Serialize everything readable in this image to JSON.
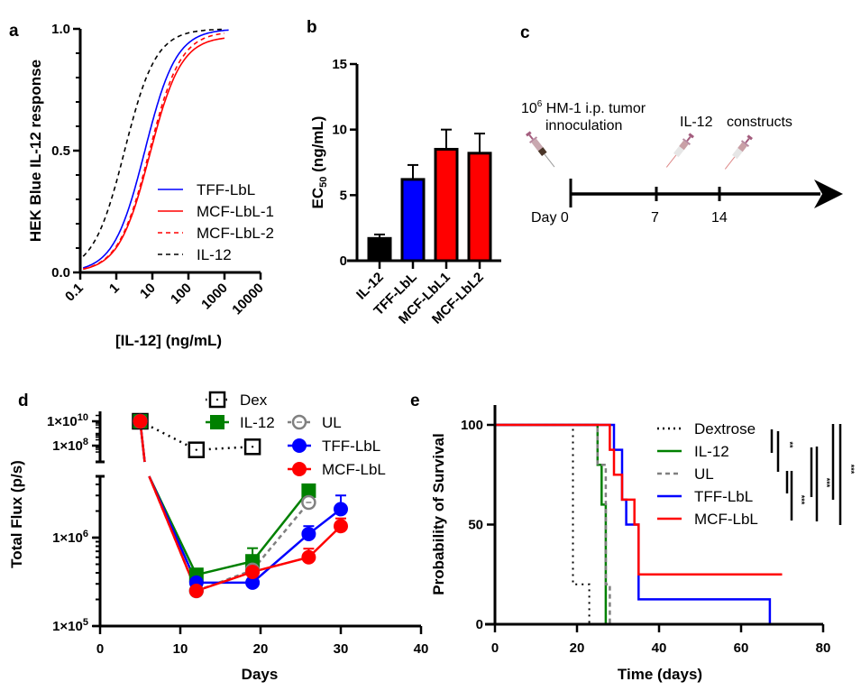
{
  "chart_data": [
    {
      "panel": "a",
      "type": "line",
      "ylabel": "HEK Blue IL-12 response",
      "xlabel": "[IL-12] (ng/mL)",
      "xscale": "log",
      "xlim": [
        0.1,
        10000
      ],
      "ylim": [
        0.0,
        1.0
      ],
      "xticks": [
        "0.1",
        "1",
        "10",
        "100",
        "1000",
        "10000"
      ],
      "yticks": [
        "0.0",
        "0.5",
        "1.0"
      ],
      "legend_position": "lower-right",
      "series": [
        {
          "name": "TFF-LbL",
          "color": "#0000ff",
          "dash": "solid",
          "ec50": 6.2,
          "top": 1.0,
          "bottom": 0.0,
          "hill": 1.0,
          "xmax": 1300
        },
        {
          "name": "MCF-LbL-1",
          "color": "#ff0000",
          "dash": "solid",
          "ec50": 8.5,
          "top": 0.97,
          "bottom": 0.0,
          "hill": 1.0,
          "xmax": 1000
        },
        {
          "name": "MCF-LbL-2",
          "color": "#ff0000",
          "dash": "dashed",
          "ec50": 8.2,
          "top": 0.99,
          "bottom": 0.0,
          "hill": 1.0,
          "xmax": 1000
        },
        {
          "name": "IL-12",
          "color": "#000000",
          "dash": "dashed",
          "ec50": 1.7,
          "top": 1.0,
          "bottom": 0.0,
          "hill": 1.0,
          "xmax": 1000
        }
      ]
    },
    {
      "panel": "b",
      "type": "bar",
      "ylabel_main": "EC",
      "ylabel_sub": "50",
      "ylabel_unit": " (ng/mL)",
      "ylim": [
        0,
        15
      ],
      "yticks": [
        "0",
        "5",
        "10",
        "15"
      ],
      "categories": [
        "IL-12",
        "TFF-LbL",
        "MCF-LbL1",
        "MCF-LbL2"
      ],
      "values": [
        1.7,
        6.2,
        8.5,
        8.2
      ],
      "errors": [
        0.3,
        1.1,
        1.5,
        1.5
      ],
      "colors": [
        "#000000",
        "#0000ff",
        "#ff0000",
        "#ff0000"
      ]
    },
    {
      "panel": "d",
      "type": "line",
      "ylabel": "Total Flux (p/s)",
      "xlabel": "Days",
      "yscale": "log",
      "xlim": [
        0,
        40
      ],
      "ylim_lower": [
        100000,
        5000000
      ],
      "ylim_upper": [
        20000000,
        30000000000
      ],
      "xticks": [
        "0",
        "10",
        "20",
        "30",
        "40"
      ],
      "yticks": [
        {
          "value": 100000,
          "base": "1×10",
          "exp": "5"
        },
        {
          "value": 1000000,
          "base": "1×10",
          "exp": "6"
        },
        {
          "value": 100000000,
          "base": "1×10",
          "exp": "8"
        },
        {
          "value": 10000000000,
          "base": "1×10",
          "exp": "10"
        }
      ],
      "legend_position": "top",
      "series": [
        {
          "name": "Dex",
          "color": "#000000",
          "marker": "open-square",
          "line": "dotted",
          "x": [
            5,
            12,
            19
          ],
          "y": [
            10000000000,
            45000000,
            80000000
          ],
          "err": [
            0,
            0,
            0
          ]
        },
        {
          "name": "IL-12",
          "color": "#008000",
          "marker": "filled-square",
          "line": "solid",
          "x": [
            5,
            12,
            19,
            26
          ],
          "y": [
            10000000000,
            380000,
            540000,
            3400000
          ],
          "err": [
            0,
            0,
            220000,
            0
          ]
        },
        {
          "name": "UL",
          "color": "#808080",
          "marker": "open-circle",
          "line": "dashed",
          "x": [
            5,
            12,
            19,
            26
          ],
          "y": [
            10000000000,
            250000,
            430000,
            2500000
          ],
          "err": [
            0,
            0,
            0,
            0
          ]
        },
        {
          "name": "TFF-LbL",
          "color": "#0000ff",
          "marker": "filled-circle",
          "line": "solid",
          "x": [
            5,
            12,
            19,
            26,
            30
          ],
          "y": [
            10000000000,
            310000,
            310000,
            1100000,
            2100000
          ],
          "err": [
            0,
            0,
            0,
            250000,
            900000
          ]
        },
        {
          "name": "MCF-LbL",
          "color": "#ff0000",
          "marker": "filled-circle",
          "line": "solid",
          "x": [
            5,
            12,
            19,
            26,
            30
          ],
          "y": [
            10000000000,
            250000,
            410000,
            600000,
            1350000
          ],
          "err": [
            0,
            0,
            0,
            150000,
            300000
          ]
        }
      ]
    },
    {
      "panel": "e",
      "type": "line",
      "subtype": "kaplan-meier",
      "ylabel": "Probability of Survival",
      "xlabel": "Time (days)",
      "xlim": [
        0,
        80
      ],
      "ylim": [
        0,
        100
      ],
      "xticks": [
        "0",
        "20",
        "40",
        "60",
        "80"
      ],
      "yticks": [
        "0",
        "50",
        "100"
      ],
      "legend_position": "top-right",
      "series": [
        {
          "name": "Dextrose",
          "color": "#000000",
          "line": "dotted",
          "steps": [
            [
              0,
              100
            ],
            [
              19,
              100
            ],
            [
              19,
              20
            ],
            [
              23,
              20
            ],
            [
              23,
              0
            ]
          ]
        },
        {
          "name": "IL-12",
          "color": "#008000",
          "line": "solid",
          "steps": [
            [
              0,
              100
            ],
            [
              25,
              100
            ],
            [
              25,
              80
            ],
            [
              26,
              80
            ],
            [
              26,
              60
            ],
            [
              27,
              60
            ],
            [
              27,
              0
            ]
          ]
        },
        {
          "name": "UL",
          "color": "#808080",
          "line": "dashed",
          "steps": [
            [
              0,
              100
            ],
            [
              25,
              100
            ],
            [
              25,
              80
            ],
            [
              27,
              80
            ],
            [
              27,
              20
            ],
            [
              28,
              20
            ],
            [
              28,
              0
            ]
          ]
        },
        {
          "name": "TFF-LbL",
          "color": "#0000ff",
          "line": "solid",
          "steps": [
            [
              0,
              100
            ],
            [
              29,
              100
            ],
            [
              29,
              87.5
            ],
            [
              31,
              87.5
            ],
            [
              31,
              62.5
            ],
            [
              32,
              62.5
            ],
            [
              32,
              50
            ],
            [
              35,
              50
            ],
            [
              35,
              12.5
            ],
            [
              67,
              12.5
            ],
            [
              67,
              0
            ]
          ]
        },
        {
          "name": "MCF-LbL",
          "color": "#ff0000",
          "line": "solid",
          "steps": [
            [
              0,
              100
            ],
            [
              28,
              100
            ],
            [
              28,
              87.5
            ],
            [
              29,
              87.5
            ],
            [
              29,
              75
            ],
            [
              31,
              75
            ],
            [
              31,
              62.5
            ],
            [
              34,
              62.5
            ],
            [
              34,
              50
            ],
            [
              35,
              50
            ],
            [
              35,
              25
            ],
            [
              70,
              25
            ]
          ]
        }
      ],
      "significance": [
        {
          "label": "**"
        },
        {
          "label": "***"
        },
        {
          "label": "***"
        },
        {
          "label": "***"
        }
      ]
    }
  ],
  "panels": {
    "a": {
      "label": "a"
    },
    "b": {
      "label": "b"
    },
    "c": {
      "label": "c",
      "inoculation_base": "10",
      "inoculation_exp": "6",
      "inoculation_line1": " HM-1 i.p. tumor",
      "inoculation_line2": "innoculation",
      "il12_label": "IL-12",
      "constructs_label": "constructs",
      "timeline_days": [
        "Day 0",
        "7",
        "14"
      ]
    },
    "d": {
      "label": "d"
    },
    "e": {
      "label": "e"
    }
  }
}
